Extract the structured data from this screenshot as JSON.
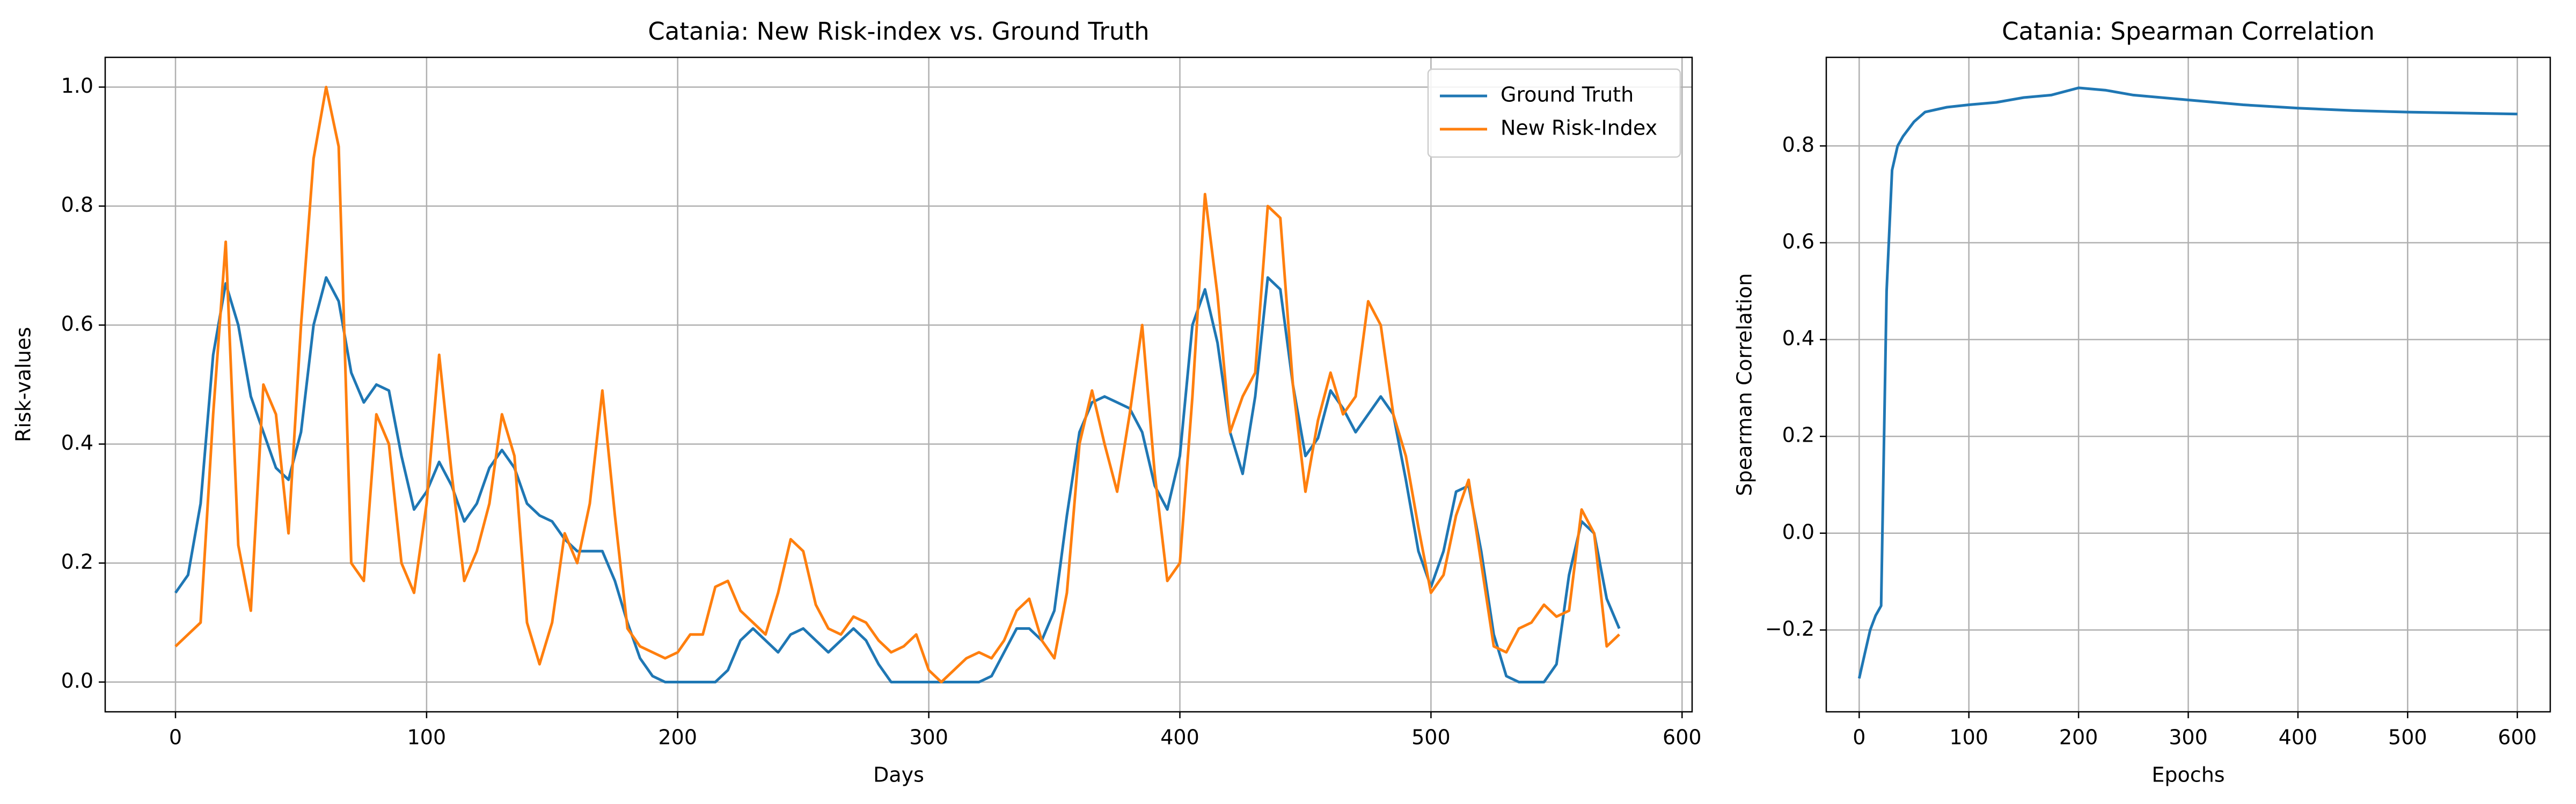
{
  "chart_data": [
    {
      "type": "line",
      "title": "Catania: New Risk-index vs. Ground Truth",
      "xlabel": "Days",
      "ylabel": "Risk-values",
      "x": [
        0,
        5,
        10,
        15,
        20,
        25,
        30,
        35,
        40,
        45,
        50,
        55,
        60,
        65,
        70,
        75,
        80,
        85,
        90,
        95,
        100,
        105,
        110,
        115,
        120,
        125,
        130,
        135,
        140,
        145,
        150,
        155,
        160,
        165,
        170,
        175,
        180,
        185,
        190,
        195,
        200,
        205,
        210,
        215,
        220,
        225,
        230,
        235,
        240,
        245,
        250,
        255,
        260,
        265,
        270,
        275,
        280,
        285,
        290,
        295,
        300,
        305,
        310,
        315,
        320,
        325,
        330,
        335,
        340,
        345,
        350,
        355,
        360,
        365,
        370,
        375,
        380,
        385,
        390,
        395,
        400,
        405,
        410,
        415,
        420,
        425,
        430,
        435,
        440,
        445,
        450,
        455,
        460,
        465,
        470,
        475,
        480,
        485,
        490,
        495,
        500,
        505,
        510,
        515,
        520,
        525,
        530,
        535,
        540,
        545,
        550,
        555,
        560,
        565,
        570,
        575
      ],
      "series": [
        {
          "name": "Ground Truth",
          "color": "#1f77b4",
          "values": [
            0.15,
            0.18,
            0.3,
            0.55,
            0.67,
            0.6,
            0.48,
            0.42,
            0.36,
            0.34,
            0.42,
            0.6,
            0.68,
            0.64,
            0.52,
            0.47,
            0.5,
            0.49,
            0.38,
            0.29,
            0.32,
            0.37,
            0.33,
            0.27,
            0.3,
            0.36,
            0.39,
            0.36,
            0.3,
            0.28,
            0.27,
            0.24,
            0.22,
            0.22,
            0.22,
            0.17,
            0.1,
            0.04,
            0.01,
            0,
            0,
            0,
            0,
            0,
            0.02,
            0.07,
            0.09,
            0.07,
            0.05,
            0.08,
            0.09,
            0.07,
            0.05,
            0.07,
            0.09,
            0.07,
            0.03,
            0,
            0,
            0,
            0,
            0,
            0,
            0,
            0,
            0.01,
            0.05,
            0.09,
            0.09,
            0.07,
            0.12,
            0.28,
            0.42,
            0.47,
            0.48,
            0.47,
            0.46,
            0.42,
            0.33,
            0.29,
            0.38,
            0.6,
            0.66,
            0.57,
            0.42,
            0.35,
            0.48,
            0.68,
            0.66,
            0.5,
            0.38,
            0.41,
            0.49,
            0.46,
            0.42,
            0.45,
            0.48,
            0.45,
            0.34,
            0.22,
            0.16,
            0.22,
            0.32,
            0.33,
            0.22,
            0.08,
            0.01,
            0,
            0,
            0,
            0.03,
            0.18,
            0.27,
            0.25,
            0.14,
            0.09
          ]
        },
        {
          "name": "New Risk-Index",
          "color": "#ff7f0e",
          "values": [
            0.06,
            0.08,
            0.1,
            0.45,
            0.74,
            0.23,
            0.12,
            0.5,
            0.45,
            0.25,
            0.6,
            0.88,
            1.0,
            0.9,
            0.2,
            0.17,
            0.45,
            0.4,
            0.2,
            0.15,
            0.3,
            0.55,
            0.35,
            0.17,
            0.22,
            0.3,
            0.45,
            0.38,
            0.1,
            0.03,
            0.1,
            0.25,
            0.2,
            0.3,
            0.49,
            0.28,
            0.09,
            0.06,
            0.05,
            0.04,
            0.05,
            0.08,
            0.08,
            0.16,
            0.17,
            0.12,
            0.1,
            0.08,
            0.15,
            0.24,
            0.22,
            0.13,
            0.09,
            0.08,
            0.11,
            0.1,
            0.07,
            0.05,
            0.06,
            0.08,
            0.02,
            0,
            0.02,
            0.04,
            0.05,
            0.04,
            0.07,
            0.12,
            0.14,
            0.07,
            0.04,
            0.15,
            0.4,
            0.49,
            0.4,
            0.32,
            0.45,
            0.6,
            0.35,
            0.17,
            0.2,
            0.48,
            0.82,
            0.65,
            0.42,
            0.48,
            0.52,
            0.8,
            0.78,
            0.5,
            0.32,
            0.44,
            0.52,
            0.45,
            0.48,
            0.64,
            0.6,
            0.45,
            0.38,
            0.26,
            0.15,
            0.18,
            0.28,
            0.34,
            0.2,
            0.06,
            0.05,
            0.09,
            0.1,
            0.13,
            0.11,
            0.12,
            0.29,
            0.25,
            0.06,
            0.08
          ]
        }
      ],
      "xlim": [
        -28,
        604
      ],
      "ylim": [
        -0.05,
        1.05
      ],
      "xticks": [
        0,
        100,
        200,
        300,
        400,
        500,
        600
      ],
      "yticks": [
        {
          "value": 0,
          "label": "0.0"
        },
        0.2,
        0.4,
        0.6,
        0.8,
        {
          "value": 1,
          "label": "1.0"
        }
      ],
      "grid": true,
      "legend": "upper right"
    },
    {
      "type": "line",
      "title": "Catania: Spearman Correlation",
      "xlabel": "Epochs",
      "ylabel": "Spearman Correlation",
      "x": [
        0,
        5,
        10,
        15,
        20,
        25,
        30,
        35,
        40,
        50,
        60,
        70,
        80,
        100,
        125,
        150,
        175,
        200,
        225,
        250,
        300,
        350,
        400,
        450,
        500,
        550,
        600
      ],
      "series": [
        {
          "name": "Spearman Correlation",
          "color": "#1f77b4",
          "values": [
            -0.3,
            -0.25,
            -0.2,
            -0.17,
            -0.15,
            0.5,
            0.75,
            0.8,
            0.82,
            0.85,
            0.87,
            0.875,
            0.88,
            0.885,
            0.89,
            0.9,
            0.905,
            0.92,
            0.915,
            0.905,
            0.895,
            0.885,
            0.878,
            0.873,
            0.87,
            0.868,
            0.866
          ]
        }
      ],
      "xlim": [
        -30,
        630
      ],
      "ylim": [
        -0.369,
        0.983
      ],
      "xticks": [
        0,
        100,
        200,
        300,
        400,
        500,
        600
      ],
      "yticks": [
        {
          "value": -0.2,
          "label": "−0.2"
        },
        {
          "value": 0,
          "label": "0.0"
        },
        0.2,
        0.4,
        0.6,
        0.8
      ],
      "grid": true
    }
  ]
}
